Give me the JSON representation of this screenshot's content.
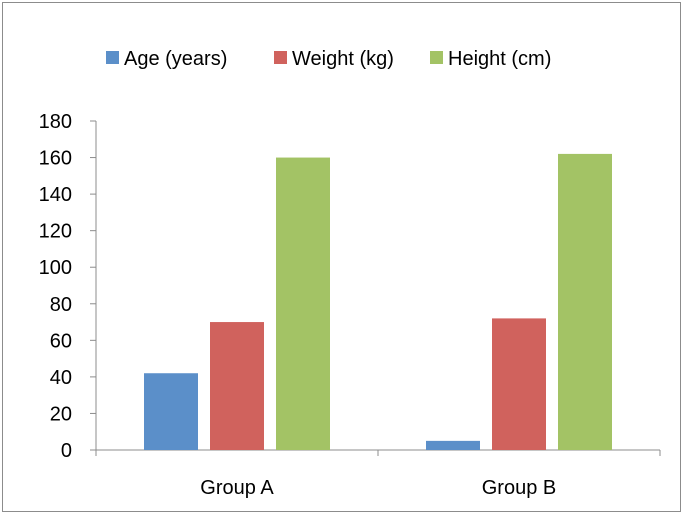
{
  "chart_data": {
    "type": "bar",
    "categories": [
      "Group A",
      "Group B"
    ],
    "series": [
      {
        "name": "Age (years)",
        "values": [
          42,
          5
        ],
        "color": "#5b8fc9"
      },
      {
        "name": "Weight (kg)",
        "values": [
          70,
          72
        ],
        "color": "#d0625d"
      },
      {
        "name": "Height (cm)",
        "values": [
          160,
          162
        ],
        "color": "#a3c365"
      }
    ],
    "title": "",
    "xlabel": "",
    "ylabel": "",
    "ylim": [
      0,
      180
    ],
    "yticks": [
      0,
      20,
      40,
      60,
      80,
      100,
      120,
      140,
      160,
      180
    ],
    "grid": false,
    "legend_position": "top"
  }
}
